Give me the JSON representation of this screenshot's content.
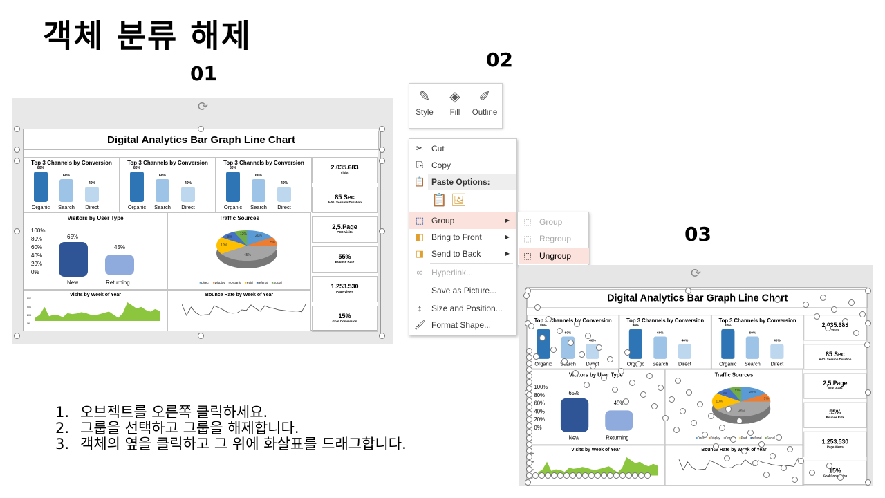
{
  "title": "객체 분류 해제",
  "labels": {
    "step1": "01",
    "step2": "02",
    "step3": "03"
  },
  "dashboard": {
    "title": "Digital Analytics Bar Graph Line Chart",
    "channels_title": "Top 3 Channels by Conversion",
    "channels": [
      {
        "label": "Organic",
        "value": "80%",
        "pct": 80,
        "color": "#2e75b6"
      },
      {
        "label": "Search",
        "value": "60%",
        "pct": 60,
        "color": "#9dc3e6"
      },
      {
        "label": "Direct",
        "value": "40%",
        "pct": 40,
        "color": "#bdd7ee"
      }
    ],
    "visitors": {
      "title": "Visitors by User Type",
      "axis": [
        "100%",
        "80%",
        "60%",
        "40%",
        "20%",
        "0%"
      ],
      "new_label": "New",
      "new_value": "65%",
      "ret_label": "Returning",
      "ret_value": "45%"
    },
    "traffic": {
      "title": "Traffic Sources",
      "slices": [
        {
          "label": "Direct",
          "pct": 20,
          "color": "#5b9bd5"
        },
        {
          "label": "Display",
          "pct": 5,
          "color": "#ed7d31"
        },
        {
          "label": "Organic",
          "pct": 45,
          "color": "#a5a5a5"
        },
        {
          "label": "Paid",
          "pct": 10,
          "color": "#ffc000"
        },
        {
          "label": "referral",
          "pct": 8,
          "color": "#4472c4"
        },
        {
          "label": "Social",
          "pct": 12,
          "color": "#70ad47"
        }
      ],
      "labels": [
        "20%",
        "5%",
        "45%",
        "10%",
        "8%",
        "12%"
      ]
    },
    "visits_title": "Visits by Week of Year",
    "visits_axis": [
      "80K",
      "50K",
      "20K",
      "0K"
    ],
    "bounce_title": "Bounce Rate by Week of Year",
    "kpis": [
      {
        "value": "2.035.683",
        "label": "Visits"
      },
      {
        "value": "85 Sec",
        "label": "AVG. Session Duration"
      },
      {
        "value": "2,5.Page",
        "label": "PER Visits"
      },
      {
        "value": "55%",
        "label": "Bounce Rate"
      },
      {
        "value": "1.253.530",
        "label": "Page Views"
      },
      {
        "value": "15%",
        "label": "Goal Conversion"
      }
    ]
  },
  "chart_data": [
    {
      "type": "area",
      "title": "Visits by Week of Year",
      "values": [
        10,
        20,
        45,
        15,
        20,
        18,
        12,
        25,
        22,
        24,
        28,
        25,
        20,
        18,
        22,
        26,
        30,
        20,
        10,
        25,
        60,
        50,
        40,
        45,
        35,
        30,
        38,
        32
      ],
      "color": "#8cc63f"
    },
    {
      "type": "line",
      "title": "Bounce Rate by Week of Year",
      "values": [
        60,
        20,
        50,
        30,
        20,
        22,
        23,
        55,
        48,
        40,
        30,
        28,
        29,
        40,
        38,
        58,
        45,
        35,
        55,
        48,
        45,
        40,
        38,
        36,
        35,
        36,
        33,
        65
      ]
    }
  ],
  "toolbar": {
    "style": "Style",
    "fill": "Fill",
    "outline": "Outline"
  },
  "menu": {
    "cut": "Cut",
    "copy": "Copy",
    "paste_options": "Paste Options:",
    "group": "Group",
    "bring_front": "Bring to Front",
    "send_back": "Send to Back",
    "hyperlink": "Hyperlink...",
    "save_picture": "Save as Picture...",
    "size_position": "Size and Position...",
    "format_shape": "Format Shape..."
  },
  "submenu": {
    "group": "Group",
    "regroup": "Regroup",
    "ungroup": "Ungroup"
  },
  "steps": [
    {
      "n": "1.",
      "text": "오브젝트를 오른쪽 클릭하세요."
    },
    {
      "n": "2.",
      "text": "그룹을 선택하고 그룹을 해제합니다."
    },
    {
      "n": "3.",
      "text": "객체의 옆을 클릭하고 그 위에 화살표를 드래그합니다."
    }
  ]
}
